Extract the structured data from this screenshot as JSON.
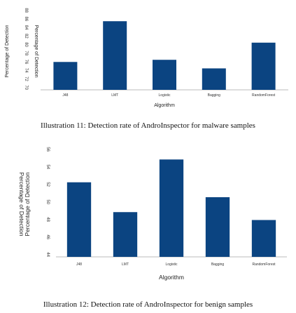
{
  "chart_data": [
    {
      "type": "bar",
      "categories": [
        "J48",
        "LMT",
        "Logistic",
        "Bagging",
        "RandomForest"
      ],
      "values": [
        76.5,
        86.0,
        77.0,
        75.0,
        81.0
      ],
      "xlabel": "Algorithm",
      "ylabel": "Percentage of Detection",
      "ylim": [
        70,
        88
      ],
      "yticks": [
        70,
        72,
        74,
        76,
        78,
        80,
        82,
        84,
        86,
        88
      ],
      "grid": false,
      "bar_color": "#0b4481"
    },
    {
      "type": "bar",
      "categories": [
        "J48",
        "LMT",
        "Logistic",
        "Bagging",
        "RandomForest"
      ],
      "values": [
        52.5,
        49.1,
        55.1,
        50.8,
        48.2
      ],
      "xlabel": "Algorithm",
      "ylabel": "Percentage of Detection",
      "ylim": [
        44,
        56
      ],
      "yticks": [
        44,
        46,
        48,
        50,
        52,
        54,
        56
      ],
      "grid": false,
      "bar_color": "#0b4481"
    }
  ],
  "captions": {
    "first": "Illustration 11: Detection rate of AndroInspector for malware samples",
    "second": "Illustration 12: Detection rate of AndroInspector for benign samples"
  }
}
